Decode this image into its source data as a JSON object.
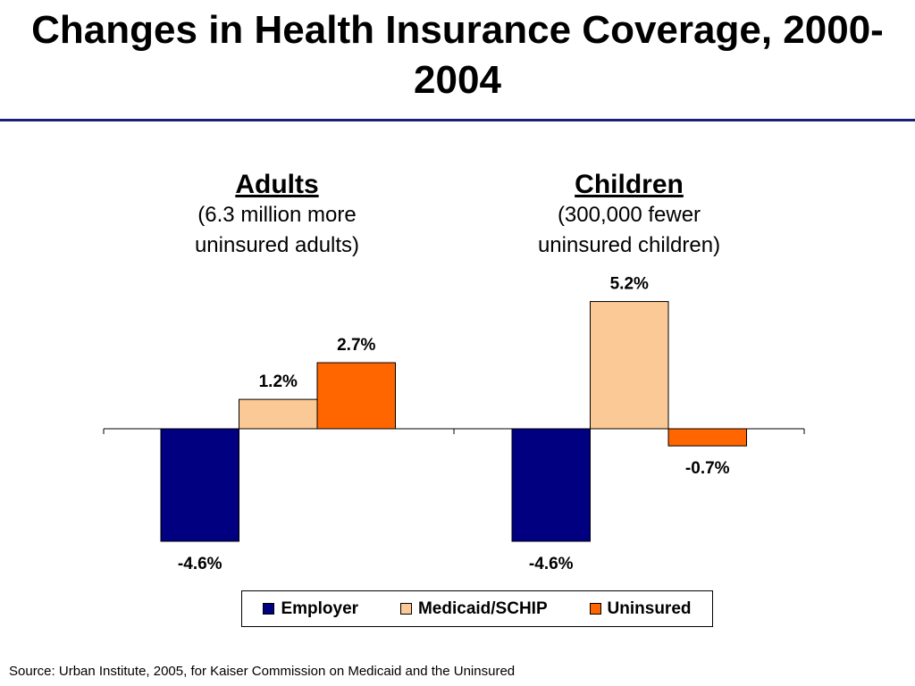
{
  "title": "Changes in Health Insurance Coverage, 2000-2004",
  "source": "Source: Urban Institute, 2005, for Kaiser Commission on Medicaid and the Uninsured",
  "colors": {
    "rule": "#1a1f7a",
    "Employer": "#000080",
    "Medicaid/SCHIP": "#fbc995",
    "Uninsured": "#ff6600"
  },
  "groups": [
    {
      "title": "Adults",
      "subtitle_lines": [
        "(6.3 million more",
        "uninsured adults)"
      ]
    },
    {
      "title": "Children",
      "subtitle_lines": [
        "(300,000 fewer",
        "uninsured children)"
      ]
    }
  ],
  "chart_data": {
    "type": "bar",
    "categories": [
      "Adults",
      "Children"
    ],
    "series": [
      {
        "name": "Employer",
        "values": [
          -4.6,
          -4.6
        ],
        "labels": [
          "-4.6%",
          "-4.6%"
        ]
      },
      {
        "name": "Medicaid/SCHIP",
        "values": [
          1.2,
          5.2
        ],
        "labels": [
          "1.2%",
          "5.2%"
        ]
      },
      {
        "name": "Uninsured",
        "values": [
          2.7,
          -0.7
        ],
        "labels": [
          "2.7%",
          "-0.7%"
        ]
      }
    ],
    "ylim": [
      -4.6,
      5.2
    ],
    "legend": "bottom",
    "grid": false
  }
}
